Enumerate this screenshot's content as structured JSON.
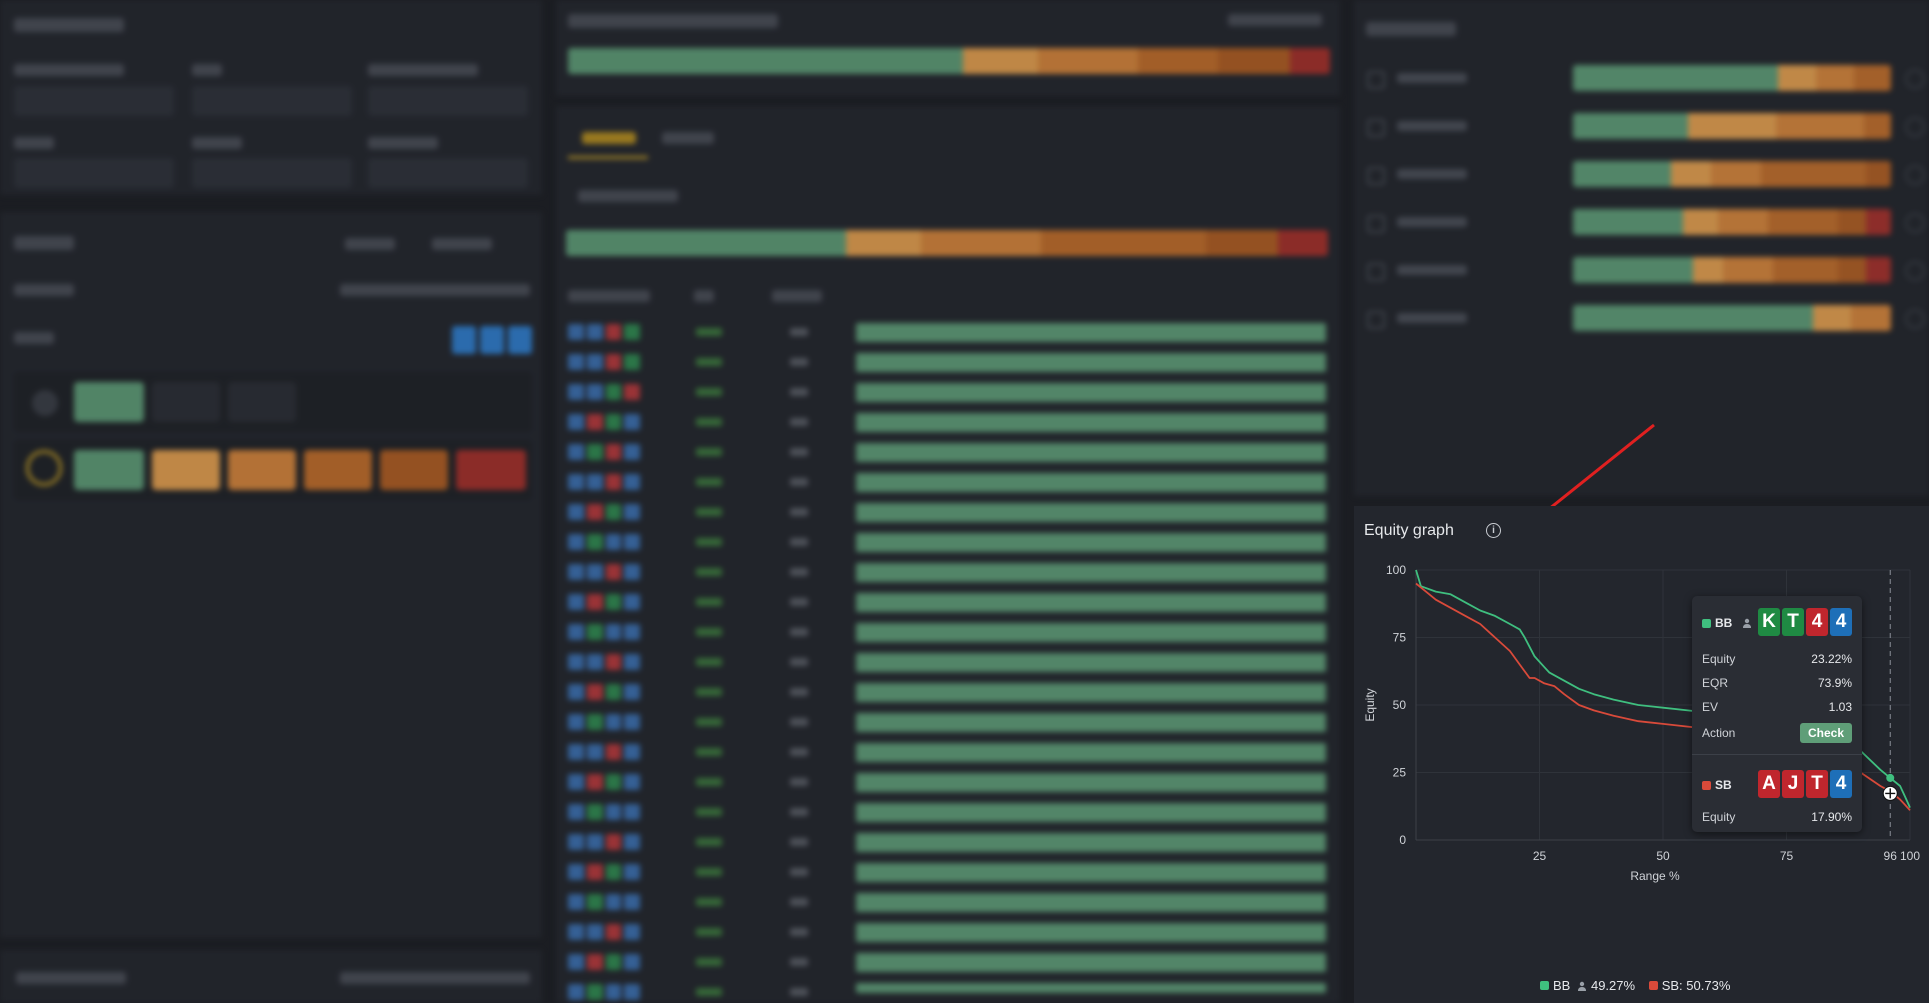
{
  "equity_graph": {
    "title": "Equity graph",
    "tooltip": {
      "bb": {
        "label": "BB",
        "cards": [
          {
            "rank": "K",
            "color": "#1f8a43"
          },
          {
            "rank": "T",
            "color": "#1f8a43"
          },
          {
            "rank": "4",
            "color": "#c0262d"
          },
          {
            "rank": "4",
            "color": "#1e6fb8"
          }
        ],
        "equity_label": "Equity",
        "equity_value": "23.22%",
        "eqr_label": "EQR",
        "eqr_value": "73.9%",
        "ev_label": "EV",
        "ev_value": "1.03",
        "action_label": "Action",
        "action_value": "Check"
      },
      "sb": {
        "label": "SB",
        "cards": [
          {
            "rank": "A",
            "color": "#c0262d"
          },
          {
            "rank": "J",
            "color": "#c0262d"
          },
          {
            "rank": "T",
            "color": "#c0262d"
          },
          {
            "rank": "4",
            "color": "#1e6fb8"
          }
        ],
        "equity_label": "Equity",
        "equity_value": "17.90%"
      }
    },
    "legend": {
      "bb_label": "BB",
      "bb_value": "49.27%",
      "sb_label": "SB:",
      "sb_value": "50.73%"
    },
    "colors": {
      "bb": "#3fbf7f",
      "sb": "#d94a3a",
      "action_check": "#5f9e78"
    }
  },
  "chart_data": {
    "type": "line",
    "xlabel": "Range %",
    "ylabel": "Equity",
    "xlim": [
      0,
      100
    ],
    "ylim": [
      0,
      100
    ],
    "x_ticks": [
      "25",
      "50",
      "75",
      "96",
      "100"
    ],
    "y_ticks": [
      "0",
      "25",
      "50",
      "75",
      "100"
    ],
    "hover_x": 96,
    "series": [
      {
        "name": "BB",
        "color": "#3fbf7f",
        "x": [
          0,
          1,
          4,
          7,
          10,
          13,
          16,
          19,
          21,
          22,
          24,
          26,
          27,
          30,
          33,
          36,
          40,
          45,
          50,
          55,
          60,
          66,
          72,
          78,
          84,
          90,
          94,
          96,
          98,
          99,
          100
        ],
        "y": [
          100,
          94,
          92,
          91,
          88,
          85,
          83,
          80,
          78,
          75,
          68,
          64,
          62,
          59,
          56,
          54,
          52,
          50,
          49,
          48,
          47,
          45,
          43,
          41,
          39,
          33,
          26,
          23,
          20,
          16,
          12
        ]
      },
      {
        "name": "SB",
        "color": "#d94a3a",
        "x": [
          0,
          2,
          4,
          7,
          10,
          13,
          16,
          19,
          21,
          23,
          24,
          26,
          28,
          30,
          33,
          36,
          40,
          45,
          50,
          55,
          60,
          66,
          72,
          78,
          84,
          90,
          94,
          96,
          98,
          99,
          100
        ],
        "y": [
          95,
          92,
          89,
          86,
          83,
          80,
          75,
          70,
          65,
          60,
          60,
          58,
          57,
          54,
          50,
          48,
          46,
          44,
          43,
          42,
          41,
          39,
          36,
          33,
          30,
          25,
          20,
          18,
          15,
          13,
          11
        ]
      }
    ],
    "grid": true,
    "legend_position": "bottom"
  }
}
